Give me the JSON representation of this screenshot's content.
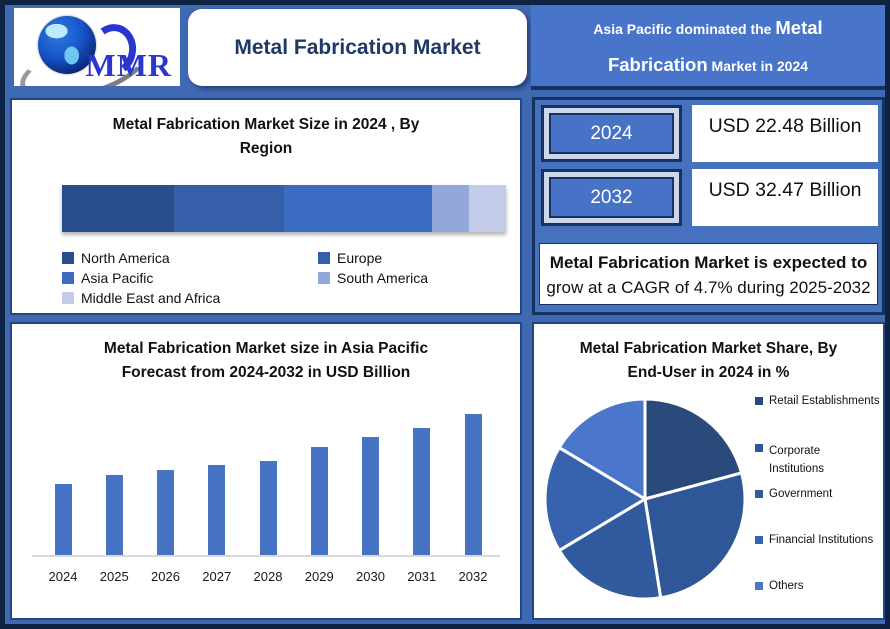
{
  "logo": {
    "text": "MMR"
  },
  "header": {
    "title": "Metal Fabrication Market",
    "banner_prefix": "Asia Pacific dominated the",
    "banner_highlight": "Metal Fabrication",
    "banner_suffix": "Market in 2024"
  },
  "stats": {
    "rows": [
      {
        "year": "2024",
        "value": "USD 22.48 Billion"
      },
      {
        "year": "2032",
        "value": "USD 32.47 Billion"
      }
    ],
    "cagr_line_bold": "Metal Fabrication Market is expected to",
    "cagr_line_rest": "grow at a CAGR of 4.7% during 2025-2032"
  },
  "colors": {
    "outer_border": "#0e2342",
    "background_blue": "#4069b3",
    "banner_blue": "#4874c9",
    "panel_border_navy": "#16325e",
    "title_navy": "#1f3864",
    "stats_panel_blue": "#4571bf",
    "badge_fill_blue": "#4673c6",
    "badge_frame_light": "#ccd7eb",
    "axis_line_gray": "#d9d9d9"
  },
  "chart_data": [
    {
      "type": "bar",
      "variant": "horizontal-stacked-single-bar",
      "title": "Metal Fabrication Market Size in 2024 , By Region",
      "categories": [
        "North America",
        "Europe",
        "Asia Pacific",
        "South America",
        "Middle East and Africa"
      ],
      "values_pct_of_bar": [
        25.2,
        24.8,
        33.4,
        8.3,
        8.3
      ],
      "value_labels_shown": false,
      "colors": [
        "#2a4d8c",
        "#3560a9",
        "#3c6bc2",
        "#93a8da",
        "#c2cce9"
      ],
      "legend_position": "bottom",
      "note": "segment widths estimated from pixels; no numeric labels shown in source"
    },
    {
      "type": "bar",
      "title": "Metal Fabrication Market size in Asia Pacific Forecast from 2024-2032 in USD Billion",
      "categories": [
        "2024",
        "2025",
        "2026",
        "2027",
        "2028",
        "2029",
        "2030",
        "2031",
        "2032"
      ],
      "values": [
        72,
        81,
        86,
        91,
        95,
        109,
        119,
        128,
        142
      ],
      "values_unit": "relative bar height (px); y-axis unlabeled in source",
      "bar_color": "#4673c4",
      "grid": false,
      "baseline_color": "#d9d9d9",
      "legend_position": "none"
    },
    {
      "type": "pie",
      "title": "Metal Fabrication Market Share, By End-User in 2024 in %",
      "labels": [
        "Retail Establishments",
        "Corporate Institutions",
        "Government",
        "Financial Institutions",
        "Others"
      ],
      "values_pct": [
        20.8,
        26.7,
        18.9,
        17.2,
        16.4
      ],
      "value_labels_shown": false,
      "colors": [
        "#2b4a7c",
        "#2f5697",
        "#315a9f",
        "#3763ae",
        "#4a76cb"
      ],
      "start_angle_deg": 0,
      "clockwise": true,
      "legend_position": "right",
      "note": "percent shares estimated from slice angles; no numeric labels shown in source"
    }
  ]
}
